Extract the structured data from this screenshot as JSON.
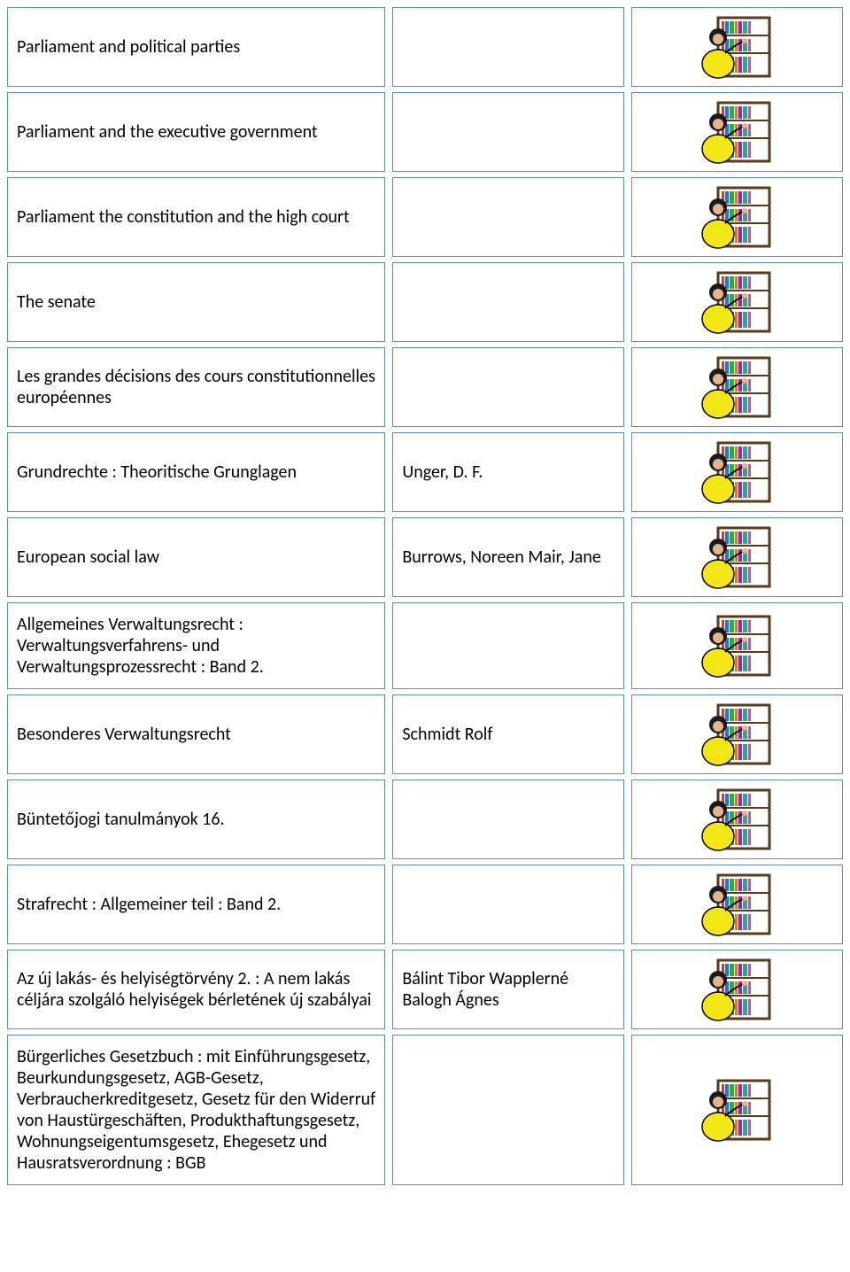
{
  "rows": [
    {
      "title": "Parliament and political parties",
      "author": "",
      "has_icon": true
    },
    {
      "title": "Parliament and the executive government",
      "author": "",
      "has_icon": true
    },
    {
      "title": "Parliament the constitution and the high court",
      "author": "",
      "has_icon": true
    },
    {
      "title": "The senate",
      "author": "",
      "has_icon": true
    },
    {
      "title": "Les grandes décisions des cours constitutionnelles européennes",
      "author": "",
      "has_icon": true
    },
    {
      "title": "Grundrechte : Theoritische Grunglagen",
      "author": "Unger, D. F.",
      "has_icon": true
    },
    {
      "title": "European social law",
      "author": "Burrows, Noreen Mair, Jane",
      "has_icon": true
    },
    {
      "title": "Allgemeines Verwaltungsrecht : Verwaltungsverfahrens- und Verwaltungsprozessrecht : Band 2.",
      "author": "",
      "has_icon": true
    },
    {
      "title": "Besonderes Verwaltungsrecht",
      "author": "Schmidt Rolf",
      "has_icon": true
    },
    {
      "title": "Büntetőjogi tanulmányok 16.",
      "author": "",
      "has_icon": true
    },
    {
      "title": "Strafrecht : Allgemeiner teil : Band 2.",
      "author": "",
      "has_icon": true
    },
    {
      "title": "Az új lakás- és helyiségtörvény 2. : A nem lakás céljára szolgáló helyiségek bérletének új szabályai",
      "author": "Bálint Tibor Wapplerné Balogh Ágnes",
      "has_icon": true
    },
    {
      "title": "Bürgerliches Gesetzbuch : mit Einführungsgesetz, Beurkundungsgesetz, AGB-Gesetz, Verbraucherkreditgesetz, Gesetz für den Widerruf von Haustürgeschäften, Produkthaftungsgesetz, Wohnungseigentumsgesetz, Ehegesetz und Hausratsverordnung : BGB",
      "author": "",
      "has_icon": true,
      "tall": true
    }
  ],
  "styling": {
    "border_color": "#5b8db8",
    "background_color": "#ffffff",
    "font_family": "Calibri",
    "font_size": 20,
    "text_color": "#000000",
    "col1_width": 432,
    "col2_width": 264,
    "col3_width": 242,
    "row_gap": 8,
    "row_margin": 6,
    "cell_padding": "12px 10px",
    "min_row_height": 90
  },
  "icon": {
    "name": "librarian-bookshelf",
    "width": 82,
    "height": 74,
    "shelf_frame": "#5a3a1a",
    "book_colors": [
      "#d9342b",
      "#2e6fd1",
      "#2ea84f",
      "#e07b1f",
      "#8a2bc4",
      "#1faaa0",
      "#d64c9a"
    ],
    "person_shirt": "#f3e616",
    "person_hair": "#1a1a1a",
    "person_skin": "#e8b58a"
  }
}
